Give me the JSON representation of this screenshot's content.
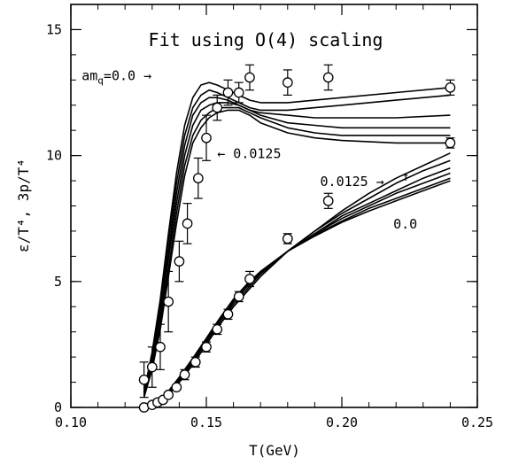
{
  "chart_data": {
    "type": "line",
    "title": "Fit using O(4) scaling",
    "xlabel": "T(GeV)",
    "ylabel": "ε/T⁴, 3p/T⁴",
    "xlim": [
      0.1,
      0.25
    ],
    "ylim": [
      0,
      16
    ],
    "x_ticks": [
      {
        "value": 0.1,
        "label": "0.10"
      },
      {
        "value": 0.15,
        "label": "0.15"
      },
      {
        "value": 0.2,
        "label": "0.20"
      },
      {
        "value": 0.25,
        "label": "0.25"
      }
    ],
    "y_ticks": [
      {
        "value": 0,
        "label": "0"
      },
      {
        "value": 5,
        "label": "5"
      },
      {
        "value": 10,
        "label": "10"
      },
      {
        "value": 15,
        "label": "15"
      }
    ],
    "grid": false,
    "annotations": [
      {
        "text": "am",
        "sub": "q",
        "suffix": "=0.0",
        "arrow": "→",
        "x": 0.104,
        "y": 13.0
      },
      {
        "text": "0.0125",
        "prefix_arrow": "←",
        "x": 0.154,
        "y": 9.9
      },
      {
        "text": "0.0125",
        "arrow": "→",
        "x": 0.192,
        "y": 8.8
      },
      {
        "text": "0.0",
        "x": 0.219,
        "y": 7.1,
        "up_arrow": "↑",
        "up_arrow_y": 9.0
      }
    ],
    "series": [
      {
        "kind": "energy_density_data",
        "x": [
          0.127,
          0.13,
          0.133,
          0.136,
          0.14,
          0.143,
          0.147,
          0.15,
          0.154,
          0.158,
          0.162,
          0.166,
          0.18,
          0.195,
          0.24
        ],
        "y": [
          1.1,
          1.6,
          2.4,
          4.2,
          5.8,
          7.3,
          9.1,
          10.7,
          11.9,
          12.5,
          12.5,
          13.1,
          12.9,
          13.1,
          12.7
        ],
        "err": [
          0.7,
          0.8,
          0.9,
          1.2,
          0.8,
          0.8,
          0.8,
          0.9,
          0.5,
          0.5,
          0.4,
          0.5,
          0.5,
          0.5,
          0.3
        ]
      },
      {
        "kind": "pressure_data",
        "x": [
          0.127,
          0.13,
          0.132,
          0.134,
          0.136,
          0.139,
          0.142,
          0.146,
          0.15,
          0.154,
          0.158,
          0.162,
          0.166,
          0.18,
          0.195,
          0.24
        ],
        "y": [
          0.0,
          0.1,
          0.2,
          0.3,
          0.5,
          0.8,
          1.3,
          1.8,
          2.4,
          3.1,
          3.7,
          4.4,
          5.1,
          6.7,
          8.2,
          10.5
        ],
        "err": [
          0,
          0,
          0,
          0,
          0,
          0.1,
          0.2,
          0.2,
          0.2,
          0.2,
          0.2,
          0.2,
          0.3,
          0.2,
          0.3,
          0.2
        ]
      },
      {
        "kind": "epsilon_fit_curves",
        "x": [
          0.127,
          0.13,
          0.133,
          0.136,
          0.139,
          0.142,
          0.145,
          0.148,
          0.151,
          0.154,
          0.158,
          0.162,
          0.166,
          0.17,
          0.18,
          0.19,
          0.2,
          0.22,
          0.24
        ],
        "curves": [
          [
            0.6,
            2.2,
            4.3,
            6.9,
            9.3,
            11.2,
            12.3,
            12.8,
            12.9,
            12.8,
            12.6,
            12.4,
            12.2,
            12.1,
            12.1,
            12.2,
            12.3,
            12.5,
            12.7
          ],
          [
            0.6,
            2.1,
            4.1,
            6.6,
            8.9,
            10.8,
            11.9,
            12.4,
            12.6,
            12.5,
            12.3,
            12.1,
            11.9,
            11.8,
            11.8,
            11.9,
            12.0,
            12.2,
            12.4
          ],
          [
            0.5,
            1.9,
            3.8,
            6.2,
            8.5,
            10.4,
            11.6,
            12.1,
            12.3,
            12.3,
            12.2,
            12.0,
            11.8,
            11.7,
            11.6,
            11.5,
            11.5,
            11.5,
            11.6
          ],
          [
            0.5,
            1.8,
            3.6,
            5.9,
            8.1,
            10.0,
            11.2,
            11.8,
            12.0,
            12.1,
            12.1,
            12.0,
            11.8,
            11.6,
            11.3,
            11.2,
            11.1,
            11.1,
            11.1
          ],
          [
            0.4,
            1.6,
            3.3,
            5.5,
            7.7,
            9.6,
            10.8,
            11.4,
            11.7,
            11.9,
            11.9,
            11.9,
            11.7,
            11.5,
            11.1,
            10.9,
            10.8,
            10.8,
            10.8
          ],
          [
            0.4,
            1.5,
            3.1,
            5.2,
            7.3,
            9.2,
            10.5,
            11.1,
            11.5,
            11.7,
            11.8,
            11.8,
            11.6,
            11.3,
            10.9,
            10.7,
            10.6,
            10.5,
            10.5
          ]
        ]
      },
      {
        "kind": "pressure_fit_curves",
        "x": [
          0.127,
          0.13,
          0.133,
          0.136,
          0.14,
          0.145,
          0.15,
          0.155,
          0.16,
          0.165,
          0.17,
          0.18,
          0.19,
          0.2,
          0.21,
          0.22,
          0.23,
          0.24
        ],
        "curves": [
          [
            0.0,
            0.05,
            0.2,
            0.5,
            1.0,
            1.7,
            2.5,
            3.3,
            4.0,
            4.6,
            5.2,
            6.2,
            7.0,
            7.8,
            8.5,
            9.1,
            9.6,
            10.1
          ],
          [
            0.0,
            0.05,
            0.2,
            0.5,
            1.0,
            1.7,
            2.5,
            3.3,
            4.0,
            4.6,
            5.2,
            6.2,
            7.0,
            7.7,
            8.3,
            8.9,
            9.4,
            9.8
          ],
          [
            0.0,
            0.06,
            0.22,
            0.55,
            1.05,
            1.8,
            2.6,
            3.4,
            4.1,
            4.7,
            5.3,
            6.2,
            6.9,
            7.6,
            8.1,
            8.6,
            9.1,
            9.5
          ],
          [
            0.0,
            0.06,
            0.24,
            0.6,
            1.1,
            1.85,
            2.65,
            3.45,
            4.2,
            4.8,
            5.3,
            6.2,
            6.9,
            7.5,
            8.0,
            8.5,
            8.9,
            9.3
          ],
          [
            0.0,
            0.07,
            0.26,
            0.62,
            1.15,
            1.9,
            2.7,
            3.5,
            4.25,
            4.85,
            5.35,
            6.2,
            6.85,
            7.4,
            7.9,
            8.3,
            8.7,
            9.1
          ],
          [
            0.0,
            0.07,
            0.28,
            0.65,
            1.2,
            1.95,
            2.75,
            3.55,
            4.3,
            4.9,
            5.4,
            6.2,
            6.8,
            7.35,
            7.8,
            8.2,
            8.6,
            9.0
          ]
        ]
      }
    ]
  }
}
